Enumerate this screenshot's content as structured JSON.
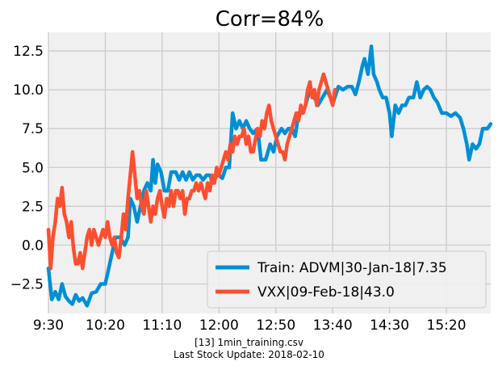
{
  "chart_data": {
    "type": "line",
    "title": "Corr=84%",
    "xlabel": "",
    "ylabel": "",
    "x_ticks": [
      "9:30",
      "10:20",
      "11:10",
      "12:00",
      "12:50",
      "13:40",
      "14:30",
      "15:20"
    ],
    "x_range": [
      "9:30",
      "15:59"
    ],
    "y_ticks": [
      -2.5,
      0.0,
      2.5,
      5.0,
      7.5,
      10.0,
      12.5
    ],
    "ylim": [
      -4.4,
      13.7
    ],
    "grid": true,
    "legend_position": "lower-right",
    "series": [
      {
        "name": "Train: ADVM|30-Jan-18|7.35",
        "color": "#008fd5",
        "points": [
          [
            "9:30",
            -1.5
          ],
          [
            "9:33",
            -3.5
          ],
          [
            "9:36",
            -3.0
          ],
          [
            "9:39",
            -3.5
          ],
          [
            "9:42",
            -2.5
          ],
          [
            "9:45",
            -3.3
          ],
          [
            "9:48",
            -3.6
          ],
          [
            "9:51",
            -3.8
          ],
          [
            "9:54",
            -3.2
          ],
          [
            "9:57",
            -3.6
          ],
          [
            "10:00",
            -3.4
          ],
          [
            "10:04",
            -3.9
          ],
          [
            "10:08",
            -3.1
          ],
          [
            "10:12",
            -3.0
          ],
          [
            "10:16",
            -2.5
          ],
          [
            "10:20",
            -2.5
          ],
          [
            "10:23",
            -1.5
          ],
          [
            "10:26",
            -0.5
          ],
          [
            "10:29",
            0.5
          ],
          [
            "10:33",
            0.5
          ],
          [
            "10:37",
            0.0
          ],
          [
            "10:40",
            0.5
          ],
          [
            "10:42",
            3.0
          ],
          [
            "10:45",
            2.5
          ],
          [
            "10:48",
            1.5
          ],
          [
            "10:51",
            2.5
          ],
          [
            "10:54",
            3.5
          ],
          [
            "10:57",
            4.0
          ],
          [
            "11:00",
            3.5
          ],
          [
            "11:02",
            5.5
          ],
          [
            "11:04",
            4.0
          ],
          [
            "11:06",
            5.2
          ],
          [
            "11:09",
            4.7
          ],
          [
            "11:12",
            3.5
          ],
          [
            "11:15",
            3.5
          ],
          [
            "11:18",
            4.7
          ],
          [
            "11:22",
            4.7
          ],
          [
            "11:25",
            4.2
          ],
          [
            "11:28",
            4.7
          ],
          [
            "11:31",
            4.2
          ],
          [
            "11:34",
            4.7
          ],
          [
            "11:37",
            4.2
          ],
          [
            "11:40",
            4.5
          ],
          [
            "11:43",
            4.5
          ],
          [
            "11:46",
            4.2
          ],
          [
            "11:49",
            4.5
          ],
          [
            "11:52",
            4.5
          ],
          [
            "11:55",
            4.0
          ],
          [
            "11:58",
            4.5
          ],
          [
            "12:00",
            4.5
          ],
          [
            "12:03",
            4.3
          ],
          [
            "12:06",
            5.0
          ],
          [
            "12:09",
            5.0
          ],
          [
            "12:12",
            8.5
          ],
          [
            "12:15",
            7.5
          ],
          [
            "12:18",
            8.0
          ],
          [
            "12:21",
            7.5
          ],
          [
            "12:24",
            8.0
          ],
          [
            "12:27",
            7.5
          ],
          [
            "12:30",
            7.2
          ],
          [
            "12:34",
            7.5
          ],
          [
            "12:37",
            5.5
          ],
          [
            "12:41",
            5.5
          ],
          [
            "12:45",
            6.5
          ],
          [
            "12:48",
            6.0
          ],
          [
            "12:51",
            7.0
          ],
          [
            "12:55",
            7.5
          ],
          [
            "12:58",
            7.2
          ],
          [
            "13:01",
            7.5
          ],
          [
            "13:04",
            7.5
          ],
          [
            "13:07",
            7.0
          ],
          [
            "13:10",
            8.5
          ],
          [
            "13:13",
            8.5
          ],
          [
            "13:16",
            9.0
          ],
          [
            "13:20",
            10.0
          ],
          [
            "13:24",
            9.5
          ],
          [
            "13:27",
            9.0
          ],
          [
            "13:31",
            9.5
          ],
          [
            "13:35",
            10.0
          ],
          [
            "13:38",
            9.5
          ],
          [
            "13:41",
            9.3
          ],
          [
            "13:45",
            10.2
          ],
          [
            "13:49",
            10.0
          ],
          [
            "13:53",
            10.2
          ],
          [
            "13:57",
            10.2
          ],
          [
            "14:00",
            9.7
          ],
          [
            "14:03",
            10.5
          ],
          [
            "14:06",
            11.5
          ],
          [
            "14:08",
            12.0
          ],
          [
            "14:11",
            11.0
          ],
          [
            "14:14",
            12.8
          ],
          [
            "14:16",
            11.0
          ],
          [
            "14:19",
            10.5
          ],
          [
            "14:21",
            10.0
          ],
          [
            "14:24",
            9.5
          ],
          [
            "14:27",
            9.5
          ],
          [
            "14:30",
            8.5
          ],
          [
            "14:32",
            7.0
          ],
          [
            "14:35",
            9.0
          ],
          [
            "14:38",
            8.5
          ],
          [
            "14:41",
            9.0
          ],
          [
            "14:44",
            9.0
          ],
          [
            "14:47",
            9.5
          ],
          [
            "14:51",
            9.5
          ],
          [
            "14:54",
            10.5
          ],
          [
            "14:57",
            9.5
          ],
          [
            "15:00",
            10.0
          ],
          [
            "15:03",
            10.2
          ],
          [
            "15:06",
            10.0
          ],
          [
            "15:09",
            9.5
          ],
          [
            "15:12",
            9.2
          ],
          [
            "15:16",
            8.5
          ],
          [
            "15:20",
            8.5
          ],
          [
            "15:24",
            8.3
          ],
          [
            "15:28",
            8.5
          ],
          [
            "15:32",
            8.2
          ],
          [
            "15:35",
            7.5
          ],
          [
            "15:38",
            6.5
          ],
          [
            "15:40",
            5.5
          ],
          [
            "15:43",
            6.5
          ],
          [
            "15:46",
            6.2
          ],
          [
            "15:49",
            6.5
          ],
          [
            "15:52",
            7.5
          ],
          [
            "15:56",
            7.5
          ],
          [
            "15:59",
            7.8
          ]
        ]
      },
      {
        "name": "VXX|09-Feb-18|43.0",
        "color": "#fc4f30",
        "points": [
          [
            "9:30",
            1.0
          ],
          [
            "9:32",
            -1.5
          ],
          [
            "9:34",
            0.5
          ],
          [
            "9:36",
            1.5
          ],
          [
            "9:38",
            3.0
          ],
          [
            "9:40",
            2.5
          ],
          [
            "9:42",
            3.7
          ],
          [
            "9:44",
            2.0
          ],
          [
            "9:46",
            1.5
          ],
          [
            "9:48",
            0.5
          ],
          [
            "9:50",
            1.5
          ],
          [
            "9:52",
            -0.2
          ],
          [
            "9:54",
            -1.2
          ],
          [
            "9:56",
            -1.2
          ],
          [
            "9:58",
            -0.5
          ],
          [
            "10:00",
            -1.5
          ],
          [
            "10:02",
            -0.5
          ],
          [
            "10:04",
            0.5
          ],
          [
            "10:06",
            1.0
          ],
          [
            "10:08",
            0.0
          ],
          [
            "10:10",
            1.0
          ],
          [
            "10:12",
            0.5
          ],
          [
            "10:14",
            0.0
          ],
          [
            "10:16",
            0.5
          ],
          [
            "10:18",
            1.0
          ],
          [
            "10:20",
            0.5
          ],
          [
            "10:22",
            1.5
          ],
          [
            "10:24",
            0.5
          ],
          [
            "10:26",
            0.0
          ],
          [
            "10:28",
            0.5
          ],
          [
            "10:30",
            -0.5
          ],
          [
            "10:32",
            -0.8
          ],
          [
            "10:34",
            0.5
          ],
          [
            "10:36",
            2.0
          ],
          [
            "10:38",
            1.0
          ],
          [
            "10:40",
            3.0
          ],
          [
            "10:42",
            4.5
          ],
          [
            "10:44",
            6.0
          ],
          [
            "10:46",
            4.5
          ],
          [
            "10:48",
            3.0
          ],
          [
            "10:50",
            3.5
          ],
          [
            "10:52",
            2.5
          ],
          [
            "10:54",
            2.0
          ],
          [
            "10:56",
            3.5
          ],
          [
            "10:58",
            2.5
          ],
          [
            "11:00",
            1.5
          ],
          [
            "11:02",
            2.5
          ],
          [
            "11:04",
            2.0
          ],
          [
            "11:06",
            3.0
          ],
          [
            "11:08",
            3.5
          ],
          [
            "11:10",
            2.5
          ],
          [
            "11:12",
            1.8
          ],
          [
            "11:14",
            3.0
          ],
          [
            "11:16",
            2.5
          ],
          [
            "11:18",
            3.5
          ],
          [
            "11:20",
            2.5
          ],
          [
            "11:22",
            3.5
          ],
          [
            "11:24",
            3.5
          ],
          [
            "11:26",
            3.0
          ],
          [
            "11:28",
            3.5
          ],
          [
            "11:30",
            2.0
          ],
          [
            "11:32",
            3.0
          ],
          [
            "11:34",
            3.0
          ],
          [
            "11:36",
            3.5
          ],
          [
            "11:38",
            3.5
          ],
          [
            "11:40",
            4.0
          ],
          [
            "11:42",
            3.5
          ],
          [
            "11:44",
            4.0
          ],
          [
            "11:46",
            3.5
          ],
          [
            "11:48",
            3.0
          ],
          [
            "11:50",
            4.0
          ],
          [
            "11:52",
            3.5
          ],
          [
            "11:54",
            4.5
          ],
          [
            "11:56",
            4.0
          ],
          [
            "11:58",
            5.0
          ],
          [
            "12:00",
            4.5
          ],
          [
            "12:02",
            5.0
          ],
          [
            "12:04",
            5.5
          ],
          [
            "12:06",
            6.0
          ],
          [
            "12:08",
            5.5
          ],
          [
            "12:10",
            6.5
          ],
          [
            "12:12",
            6.0
          ],
          [
            "12:14",
            7.0
          ],
          [
            "12:16",
            6.5
          ],
          [
            "12:18",
            7.0
          ],
          [
            "12:20",
            7.0
          ],
          [
            "12:22",
            7.5
          ],
          [
            "12:24",
            6.5
          ],
          [
            "12:26",
            7.0
          ],
          [
            "12:28",
            6.0
          ],
          [
            "12:30",
            6.0
          ],
          [
            "12:32",
            6.8
          ],
          [
            "12:34",
            7.5
          ],
          [
            "12:36",
            7.0
          ],
          [
            "12:38",
            8.0
          ],
          [
            "12:40",
            7.5
          ],
          [
            "12:42",
            8.5
          ],
          [
            "12:44",
            9.0
          ],
          [
            "12:46",
            8.0
          ],
          [
            "12:48",
            7.5
          ],
          [
            "12:50",
            7.0
          ],
          [
            "12:52",
            6.5
          ],
          [
            "12:54",
            6.0
          ],
          [
            "12:56",
            6.0
          ],
          [
            "12:58",
            5.5
          ],
          [
            "13:00",
            6.5
          ],
          [
            "13:02",
            7.0
          ],
          [
            "13:04",
            7.5
          ],
          [
            "13:06",
            8.0
          ],
          [
            "13:08",
            8.5
          ],
          [
            "13:10",
            8.0
          ],
          [
            "13:12",
            9.0
          ],
          [
            "13:14",
            8.5
          ],
          [
            "13:16",
            9.0
          ],
          [
            "13:18",
            10.0
          ],
          [
            "13:20",
            10.5
          ],
          [
            "13:22",
            9.5
          ],
          [
            "13:24",
            10.0
          ],
          [
            "13:26",
            9.0
          ],
          [
            "13:28",
            10.0
          ],
          [
            "13:30",
            10.5
          ],
          [
            "13:32",
            11.0
          ],
          [
            "13:34",
            10.5
          ],
          [
            "13:36",
            10.0
          ],
          [
            "13:38",
            9.5
          ],
          [
            "13:40",
            9.0
          ],
          [
            "13:42",
            10.0
          ]
        ]
      }
    ]
  },
  "footer": {
    "line1": "[13] 1min_training.csv",
    "line2": "Last Stock Update: 2018-02-10"
  }
}
